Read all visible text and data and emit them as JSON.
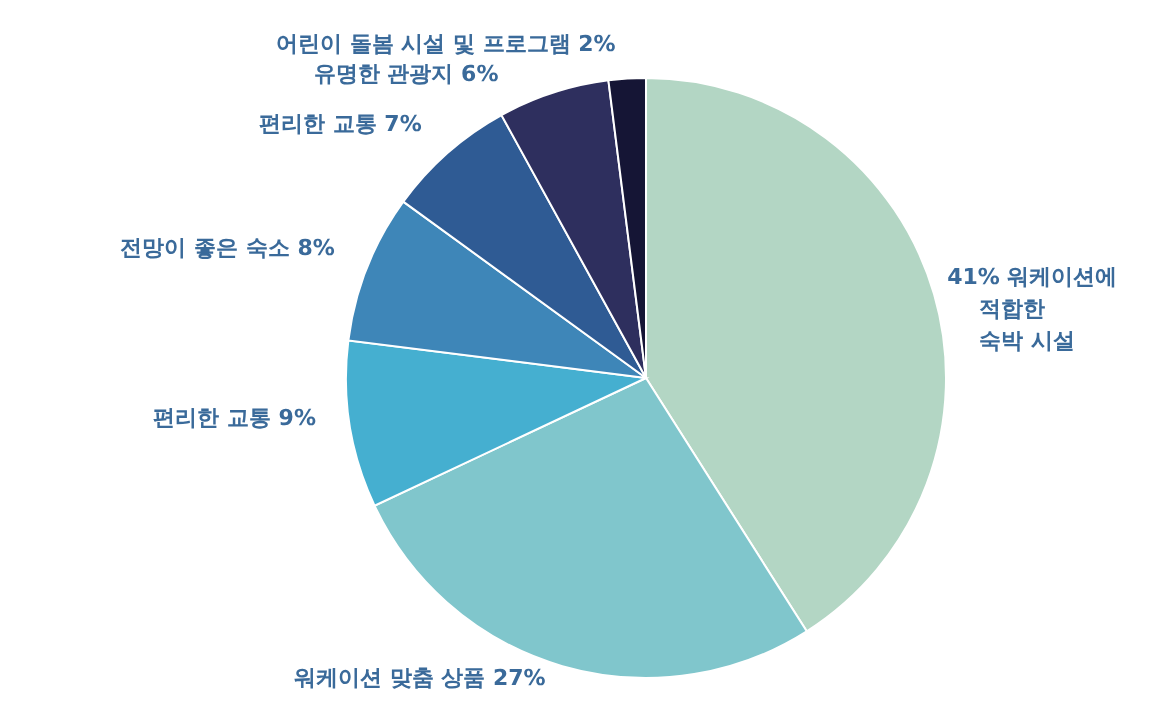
{
  "chart_data": {
    "type": "pie",
    "categories": [
      "워케이션에 적합한 숙박 시설",
      "워케이션 맞춤 상품",
      "편리한 교통",
      "전망이 좋은 숙소",
      "편리한 교통",
      "유명한 관광지",
      "어린이 돌봄 시설 및 프로그램"
    ],
    "values": [
      41,
      27,
      9,
      8,
      7,
      6,
      2
    ],
    "value_labels": [
      "41%",
      "27%",
      "9%",
      "8%",
      "7%",
      "6%",
      "2%"
    ],
    "colors": [
      "#b3d6c4",
      "#80c6cc",
      "#45afd0",
      "#3e86b8",
      "#2f5b94",
      "#2e2f5e",
      "#151535"
    ],
    "legend": false
  }
}
